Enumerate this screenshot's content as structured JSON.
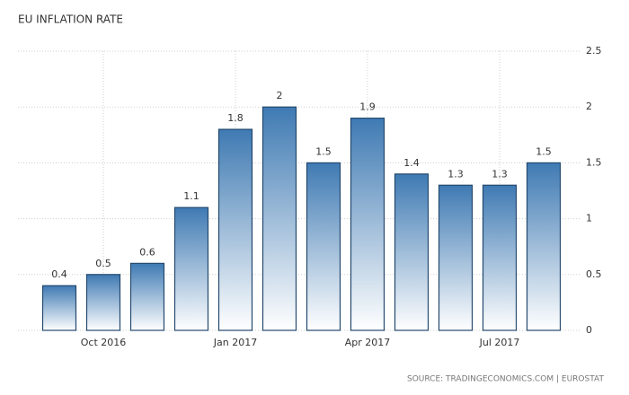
{
  "chart_data": {
    "type": "bar",
    "title": "EU INFLATION RATE",
    "categories": [
      null,
      "Oct 2016",
      null,
      null,
      "Jan 2017",
      null,
      null,
      "Apr 2017",
      null,
      null,
      "Jul 2017",
      null
    ],
    "values": [
      0.4,
      0.5,
      0.6,
      1.1,
      1.8,
      2,
      1.5,
      1.9,
      1.4,
      1.3,
      1.3,
      1.5
    ],
    "color": "#3f7ab3",
    "ylim": [
      0,
      2.5
    ],
    "yticks": [
      0,
      0.5,
      1,
      1.5,
      2,
      2.5
    ],
    "grid": true,
    "source": "SOURCE: TRADINGECONOMICS.COM | EUROSTAT"
  }
}
